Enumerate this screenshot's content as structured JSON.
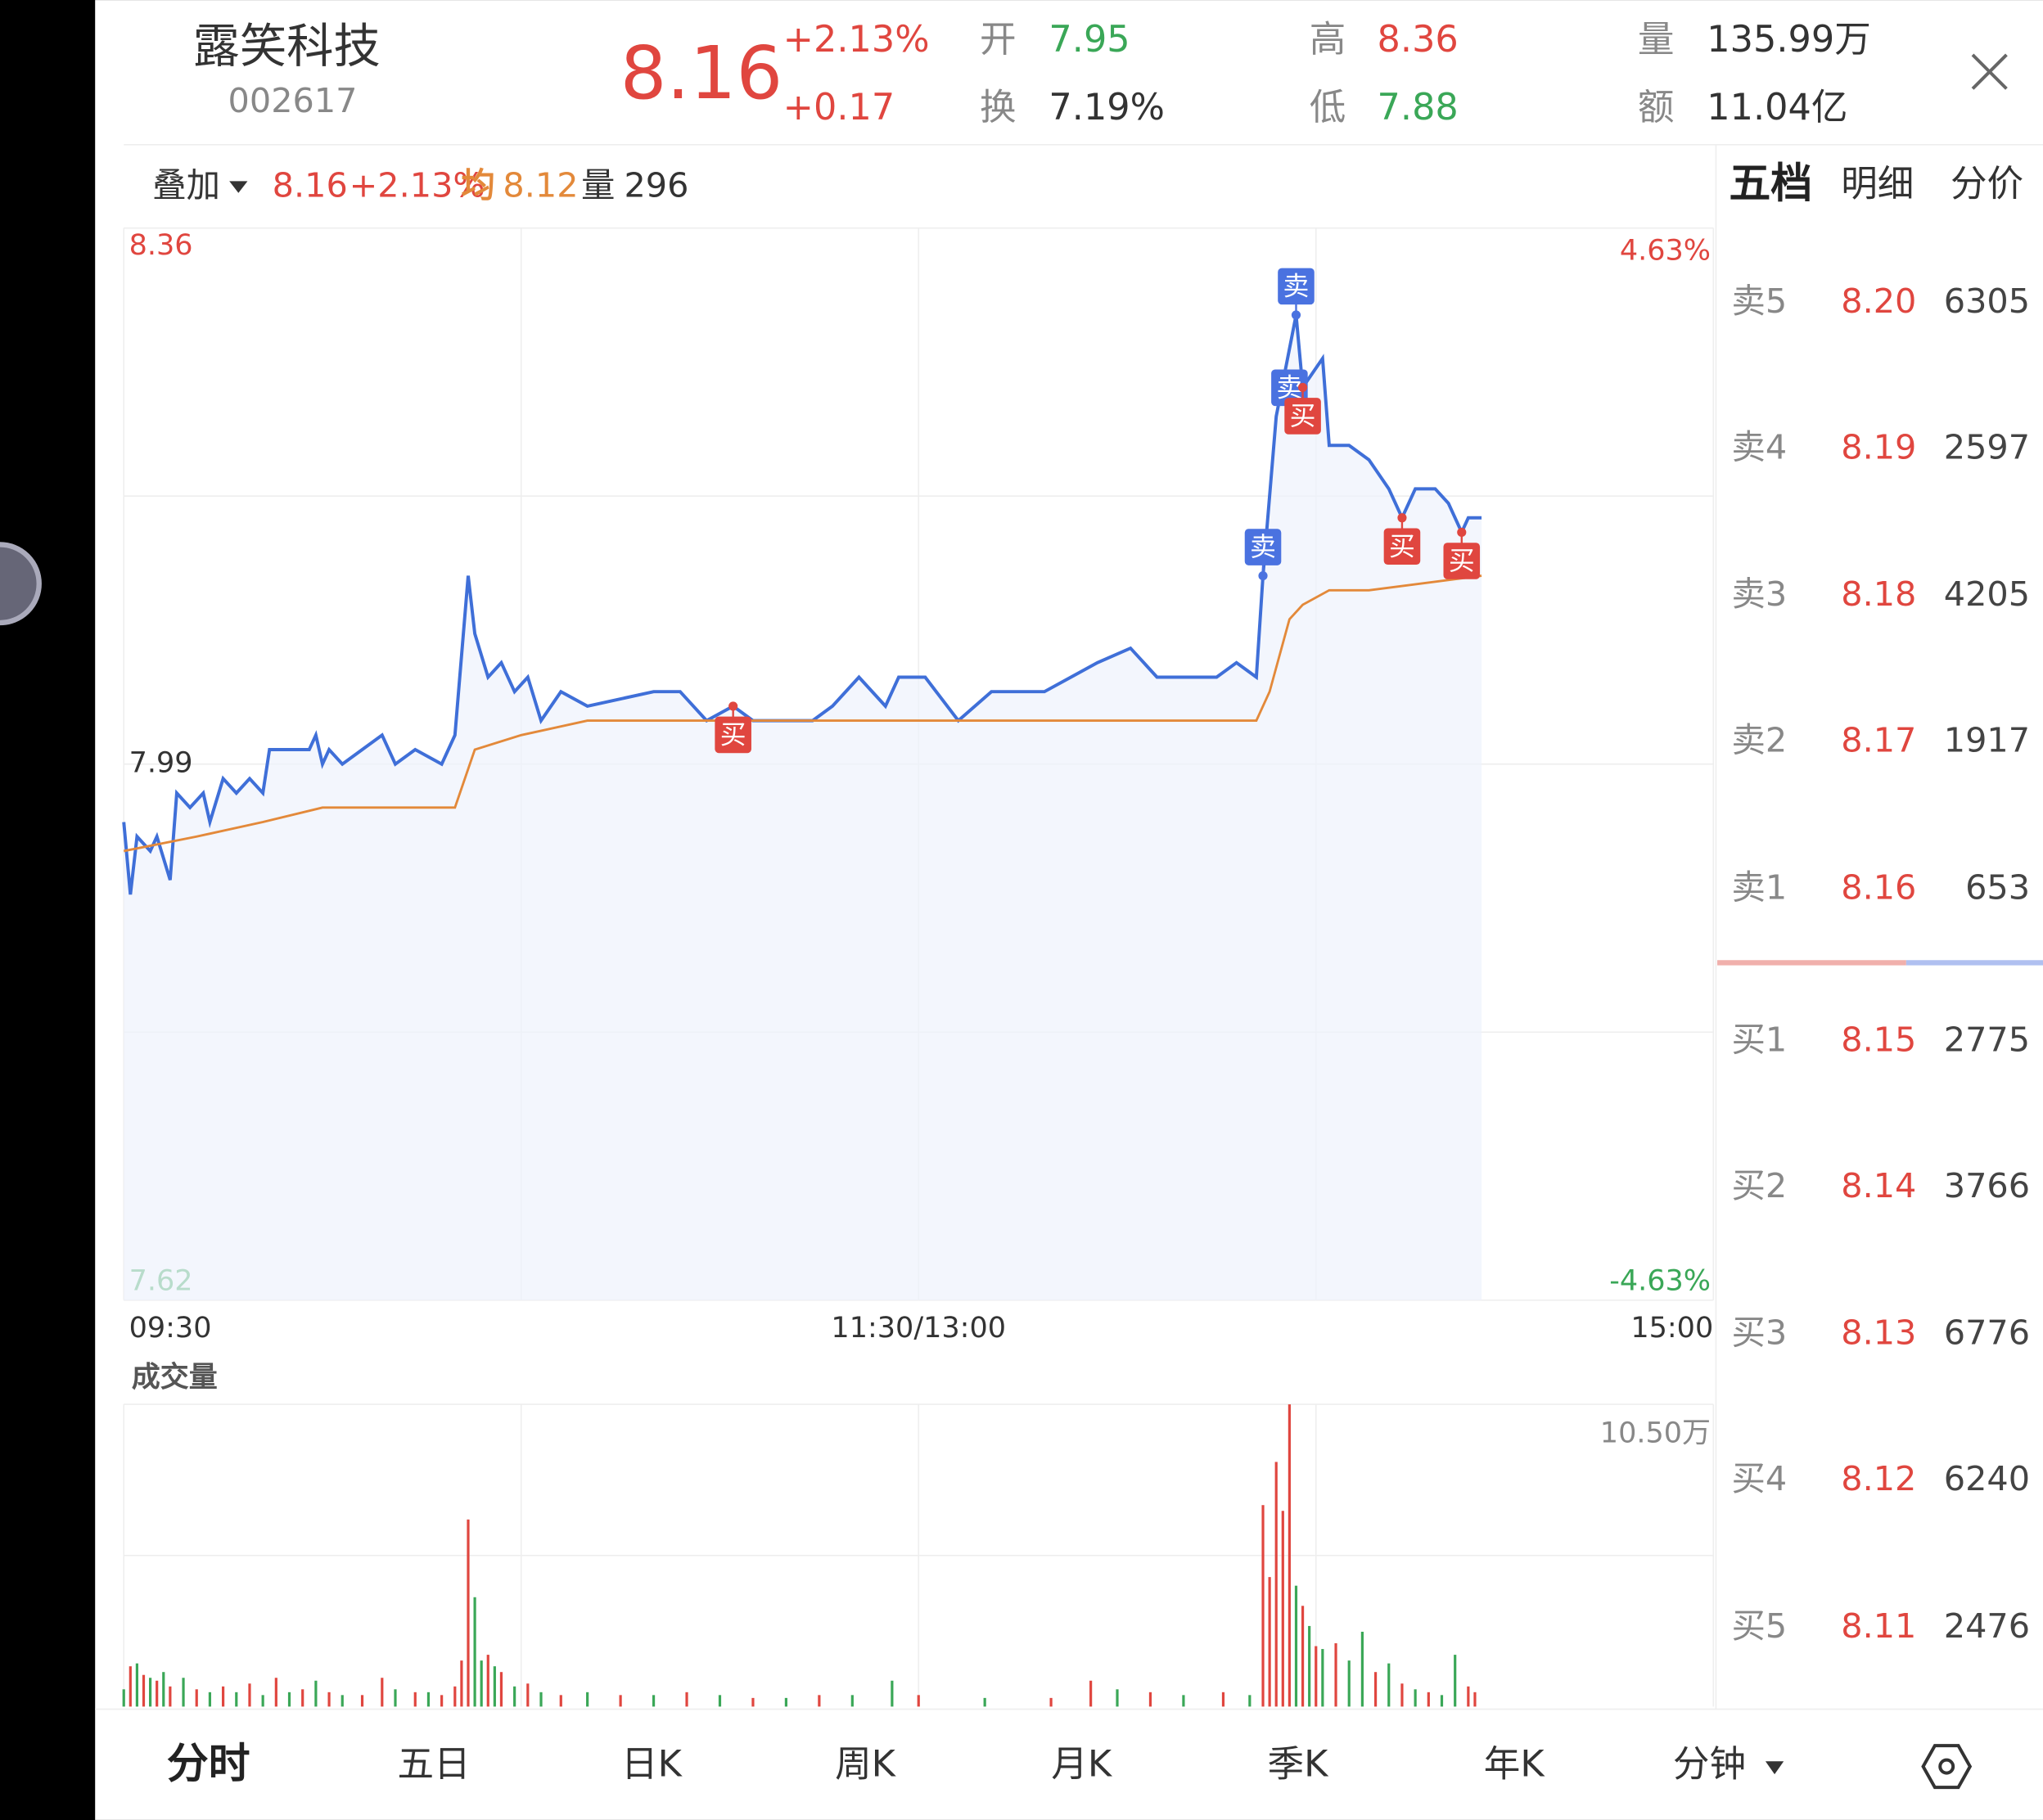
{
  "header": {
    "name": "露笑科技",
    "code": "002617",
    "price": "8.16",
    "change_pct": "+2.13%",
    "change": "+0.17",
    "stats": [
      {
        "label": "开",
        "value": "7.95"
      },
      {
        "label": "换",
        "value": "7.19%"
      },
      {
        "label": "高",
        "value": "8.36"
      },
      {
        "label": "低",
        "value": "7.88"
      },
      {
        "label": "量",
        "value": "135.99万"
      },
      {
        "label": "额",
        "value": "11.04亿"
      }
    ]
  },
  "info_bar": {
    "overlay": "叠加",
    "price": "8.16",
    "change_pct": "+2.13%",
    "avg_label": "均",
    "avg": "8.12",
    "vol_label": "量",
    "vol": "296"
  },
  "chart_data": {
    "type": "line",
    "xlim": [
      0,
      240
    ],
    "xticks": [
      {
        "value": 0,
        "label": "09:30"
      },
      {
        "value": 120,
        "label": "11:30/13:00"
      },
      {
        "value": 240,
        "label": "15:00"
      }
    ],
    "ylim": [
      7.62,
      8.36
    ],
    "yticks": [
      8.36,
      7.99,
      7.62
    ],
    "y2lim": [
      -4.63,
      4.63
    ],
    "y2ticks": [
      {
        "value": 4.63,
        "label": "4.63%"
      },
      {
        "value": -4.63,
        "label": "-4.63%"
      }
    ],
    "series": [
      {
        "name": "price",
        "color": "#3f6fd8",
        "x": [
          0,
          1,
          2,
          4,
          5,
          7,
          8,
          10,
          12,
          13,
          15,
          17,
          19,
          21,
          22,
          28,
          29,
          30,
          31,
          33,
          36,
          39,
          41,
          44,
          48,
          50,
          52,
          53,
          55,
          57,
          59,
          61,
          63,
          66,
          70,
          80,
          84,
          88,
          92,
          95,
          104,
          107,
          111,
          115,
          117,
          121,
          126,
          131,
          139,
          143,
          147,
          152,
          156,
          157,
          165,
          168,
          171,
          172,
          174,
          177,
          178,
          181,
          182,
          185,
          188,
          191,
          193,
          195,
          198,
          200,
          202,
          203,
          205
        ],
        "values": [
          7.95,
          7.9,
          7.94,
          7.93,
          7.94,
          7.91,
          7.97,
          7.96,
          7.97,
          7.95,
          7.98,
          7.97,
          7.98,
          7.97,
          8.0,
          8.0,
          8.01,
          7.99,
          8.0,
          7.99,
          8.0,
          8.01,
          7.99,
          8.0,
          7.99,
          8.01,
          8.12,
          8.08,
          8.05,
          8.06,
          8.04,
          8.05,
          8.02,
          8.04,
          8.03,
          8.04,
          8.04,
          8.02,
          8.03,
          8.02,
          8.02,
          8.03,
          8.05,
          8.03,
          8.05,
          8.05,
          8.02,
          8.04,
          8.04,
          8.05,
          8.06,
          8.07,
          8.05,
          8.05,
          8.05,
          8.06,
          8.05,
          8.12,
          8.23,
          8.3,
          8.25,
          8.27,
          8.21,
          8.21,
          8.2,
          8.18,
          8.16,
          8.18,
          8.18,
          8.17,
          8.15,
          8.16,
          8.16
        ]
      },
      {
        "name": "average",
        "color": "#e3893a",
        "x": [
          0,
          11,
          21,
          30,
          40,
          50,
          53,
          60,
          70,
          100,
          139,
          171,
          173,
          176,
          178,
          182,
          188,
          205
        ],
        "values": [
          7.93,
          7.94,
          7.95,
          7.96,
          7.96,
          7.96,
          8.0,
          8.01,
          8.02,
          8.02,
          8.02,
          8.02,
          8.04,
          8.09,
          8.1,
          8.11,
          8.11,
          8.12
        ]
      }
    ],
    "annotations": [
      {
        "x": 92,
        "y": 8.03,
        "label": "买",
        "color": "#e0463f"
      },
      {
        "x": 172,
        "y": 8.12,
        "label": "卖",
        "color": "#4a72e0"
      },
      {
        "x": 177,
        "y": 8.3,
        "label": "卖",
        "color": "#4a72e0"
      },
      {
        "x": 176,
        "y": 8.23,
        "label": "卖",
        "color": "#4a72e0"
      },
      {
        "x": 178,
        "y": 8.25,
        "label": "买",
        "color": "#e0463f"
      },
      {
        "x": 193,
        "y": 8.16,
        "label": "买",
        "color": "#e0463f"
      },
      {
        "x": 202,
        "y": 8.15,
        "label": "买",
        "color": "#e0463f"
      }
    ]
  },
  "volume_chart": {
    "type": "bar",
    "title": "成交量",
    "xlim": [
      0,
      240
    ],
    "ylim": [
      0,
      10.5
    ],
    "yticks": [
      {
        "value": 10.5,
        "label": "10.50万"
      }
    ],
    "x": [
      0,
      1,
      2,
      3,
      4,
      5,
      6,
      7,
      9,
      11,
      13,
      15,
      17,
      19,
      21,
      23,
      25,
      27,
      29,
      31,
      33,
      36,
      39,
      41,
      44,
      46,
      48,
      50,
      51,
      52,
      53,
      54,
      55,
      56,
      57,
      59,
      61,
      63,
      66,
      70,
      75,
      80,
      85,
      90,
      95,
      100,
      105,
      110,
      116,
      120,
      130,
      140,
      146,
      150,
      155,
      160,
      166,
      170,
      172,
      173,
      174,
      175,
      176,
      177,
      178,
      179,
      180,
      181,
      183,
      185,
      187,
      189,
      191,
      193,
      195,
      197,
      199,
      201,
      203,
      204
    ],
    "values": [
      0.6,
      1.4,
      1.5,
      1.1,
      1.0,
      0.9,
      1.2,
      0.7,
      1.0,
      0.6,
      0.5,
      0.7,
      0.5,
      0.8,
      0.4,
      1.0,
      0.5,
      0.6,
      0.9,
      0.5,
      0.4,
      0.4,
      1.0,
      0.6,
      0.5,
      0.5,
      0.4,
      0.7,
      1.6,
      6.5,
      3.8,
      1.6,
      1.8,
      1.4,
      1.2,
      0.7,
      0.8,
      0.5,
      0.4,
      0.5,
      0.4,
      0.4,
      0.5,
      0.4,
      0.3,
      0.3,
      0.4,
      0.4,
      0.9,
      0.4,
      0.3,
      0.3,
      0.9,
      0.6,
      0.5,
      0.4,
      0.5,
      0.4,
      7.0,
      4.5,
      8.5,
      6.8,
      10.5,
      4.2,
      3.5,
      2.8,
      2.1,
      2.0,
      2.2,
      1.6,
      2.6,
      1.2,
      1.5,
      0.8,
      0.6,
      0.5,
      0.4,
      1.8,
      0.7,
      0.5
    ],
    "colors": [
      "#3aa757",
      "#e0463f",
      "#3aa757",
      "#e0463f",
      "#3aa757",
      "#e0463f",
      "#3aa757",
      "#e0463f",
      "#3aa757",
      "#e0463f",
      "#3aa757",
      "#e0463f",
      "#3aa757",
      "#e0463f",
      "#3aa757",
      "#e0463f",
      "#3aa757",
      "#e0463f",
      "#3aa757",
      "#e0463f",
      "#3aa757",
      "#e0463f",
      "#e0463f",
      "#3aa757",
      "#e0463f",
      "#3aa757",
      "#e0463f",
      "#e0463f",
      "#e0463f",
      "#e0463f",
      "#3aa757",
      "#3aa757",
      "#e0463f",
      "#3aa757",
      "#e0463f",
      "#3aa757",
      "#e0463f",
      "#3aa757",
      "#e0463f",
      "#3aa757",
      "#e0463f",
      "#3aa757",
      "#e0463f",
      "#3aa757",
      "#e0463f",
      "#3aa757",
      "#e0463f",
      "#3aa757",
      "#3aa757",
      "#e0463f",
      "#3aa757",
      "#e0463f",
      "#e0463f",
      "#3aa757",
      "#e0463f",
      "#3aa757",
      "#e0463f",
      "#3aa757",
      "#e0463f",
      "#e0463f",
      "#e0463f",
      "#e0463f",
      "#e0463f",
      "#3aa757",
      "#e0463f",
      "#3aa757",
      "#e0463f",
      "#3aa757",
      "#e0463f",
      "#3aa757",
      "#3aa757",
      "#e0463f",
      "#3aa757",
      "#e0463f",
      "#3aa757",
      "#e0463f",
      "#3aa757",
      "#3aa757",
      "#e0463f",
      "#e0463f"
    ]
  },
  "order_book": {
    "tabs": [
      "五档",
      "明细",
      "分价"
    ],
    "asks": [
      {
        "label": "卖5",
        "price": "8.20",
        "volume": "6305"
      },
      {
        "label": "卖4",
        "price": "8.19",
        "volume": "2597"
      },
      {
        "label": "卖3",
        "price": "8.18",
        "volume": "4205"
      },
      {
        "label": "卖2",
        "price": "8.17",
        "volume": "1917"
      },
      {
        "label": "卖1",
        "price": "8.16",
        "volume": "653"
      }
    ],
    "bids": [
      {
        "label": "买1",
        "price": "8.15",
        "volume": "2775"
      },
      {
        "label": "买2",
        "price": "8.14",
        "volume": "3766"
      },
      {
        "label": "买3",
        "price": "8.13",
        "volume": "6776"
      },
      {
        "label": "买4",
        "price": "8.12",
        "volume": "6240"
      },
      {
        "label": "买5",
        "price": "8.11",
        "volume": "2476"
      }
    ]
  },
  "bottom_tabs": [
    "分时",
    "五日",
    "日K",
    "周K",
    "月K",
    "季K",
    "年K",
    "分钟"
  ]
}
